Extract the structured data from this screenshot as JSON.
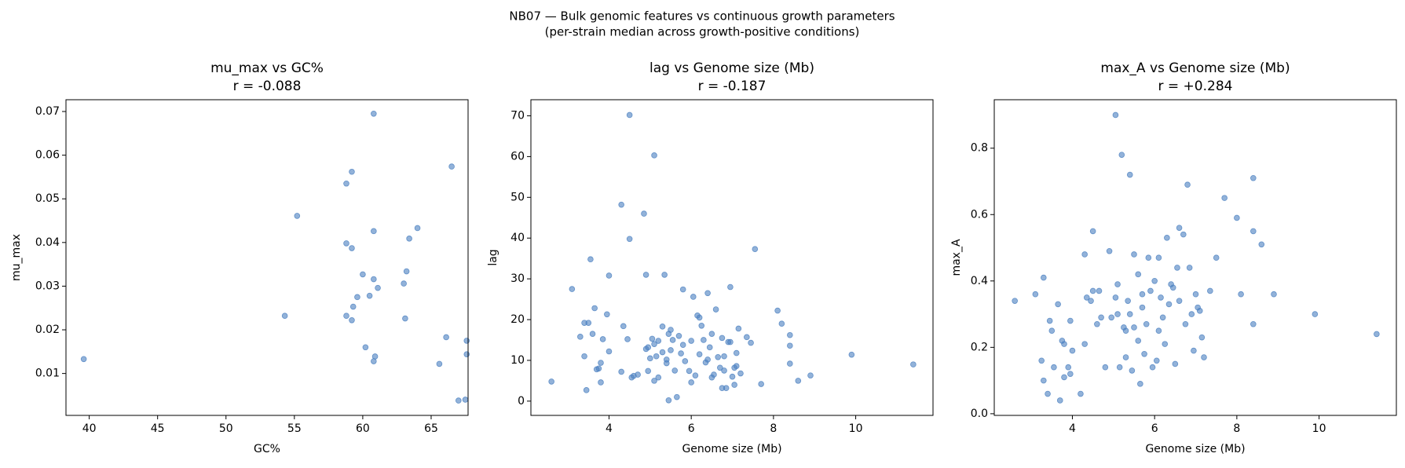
{
  "title": "NB07 — Bulk genomic features vs continuous growth parameters",
  "subtitle": "(per-strain median across growth-positive conditions)",
  "chart_data": [
    {
      "type": "scatter",
      "title": "mu_max vs GC%",
      "subtitle": "r = -0.088",
      "xlabel": "GC%",
      "ylabel": "mu_max",
      "color": "#4a7fc0",
      "x": [
        39.6,
        54.3,
        55.2,
        58.8,
        59.2,
        58.8,
        59.2,
        60.0,
        59.6,
        59.3,
        58.8,
        59.2,
        60.2,
        60.8,
        60.8,
        60.8,
        60.5,
        61.1,
        60.9,
        60.8,
        63.4,
        64.0,
        63.2,
        63.0,
        63.1,
        66.5,
        66.1,
        65.6,
        67.6,
        67.6,
        67.5,
        67.0
      ],
      "values": [
        0.0133,
        0.0232,
        0.0461,
        0.0535,
        0.0562,
        0.0398,
        0.0387,
        0.0327,
        0.0275,
        0.0253,
        0.0232,
        0.0222,
        0.016,
        0.0426,
        0.0695,
        0.0316,
        0.0278,
        0.0296,
        0.0139,
        0.0128,
        0.0409,
        0.0433,
        0.0334,
        0.0306,
        0.0226,
        0.0574,
        0.0183,
        0.0122,
        0.0175,
        0.0144,
        0.004,
        0.0038
      ],
      "xlim": [
        38.3,
        67.7
      ],
      "ylim": [
        0.0004,
        0.0727
      ],
      "xticks": [
        40,
        45,
        50,
        55,
        60,
        65
      ],
      "yticks": [
        0.01,
        0.02,
        0.03,
        0.04,
        0.05,
        0.06,
        0.07
      ]
    },
    {
      "type": "scatter",
      "title": "lag vs Genome size (Mb)",
      "subtitle": "r = -0.187",
      "xlabel": "Genome size (Mb)",
      "ylabel": "lag",
      "color": "#4a7fc0",
      "x": [
        2.6,
        3.1,
        3.3,
        3.4,
        3.4,
        3.5,
        3.45,
        3.55,
        3.6,
        3.65,
        3.7,
        3.75,
        3.8,
        3.8,
        3.85,
        4.0,
        3.95,
        4.0,
        4.3,
        4.3,
        4.35,
        4.45,
        4.5,
        4.5,
        4.6,
        4.55,
        4.7,
        4.85,
        4.9,
        4.9,
        4.95,
        4.95,
        5.0,
        5.1,
        5.05,
        5.1,
        5.1,
        5.15,
        5.2,
        5.2,
        5.3,
        5.3,
        5.35,
        5.4,
        5.4,
        5.45,
        5.45,
        5.5,
        5.5,
        5.55,
        5.6,
        5.65,
        5.7,
        5.75,
        5.8,
        5.8,
        5.85,
        5.95,
        6.0,
        6.0,
        6.05,
        6.1,
        6.15,
        6.2,
        6.2,
        6.25,
        6.3,
        6.35,
        6.4,
        6.4,
        6.45,
        6.5,
        6.5,
        6.55,
        6.6,
        6.65,
        6.7,
        6.75,
        6.75,
        6.8,
        6.8,
        6.85,
        6.9,
        6.95,
        6.95,
        7.0,
        7.05,
        7.05,
        7.1,
        7.1,
        7.15,
        7.2,
        7.35,
        7.45,
        7.55,
        7.7,
        8.1,
        8.2,
        8.4,
        8.4,
        8.4,
        8.6,
        8.9,
        9.9,
        11.4
      ],
      "values": [
        4.8,
        27.5,
        15.8,
        19.2,
        11,
        19.2,
        2.7,
        34.8,
        16.5,
        22.8,
        7.8,
        8,
        9.4,
        4.6,
        15.2,
        30.8,
        21.3,
        12.2,
        7.2,
        48.2,
        18.4,
        15.2,
        39.8,
        70.2,
        6.2,
        5.8,
        6.5,
        46,
        31,
        12.8,
        13.2,
        7.4,
        10.5,
        60.3,
        15.3,
        14,
        5,
        11,
        5.8,
        14.8,
        12,
        18.3,
        31,
        9.3,
        10.2,
        16.5,
        0.2,
        17.5,
        12.5,
        15,
        7.5,
        1,
        16,
        11.7,
        13.8,
        27.4,
        9.8,
        7.4,
        14.8,
        4.6,
        25.6,
        6.3,
        21,
        20.5,
        11.5,
        18.5,
        15,
        9.5,
        26.5,
        10.2,
        13.2,
        16.5,
        5.8,
        6.5,
        22.5,
        10.8,
        8.2,
        3.2,
        15.5,
        7.5,
        11,
        3.2,
        14.5,
        28,
        14.5,
        6,
        8.2,
        4,
        8.6,
        11.8,
        17.8,
        6.8,
        15.7,
        14.3,
        37.3,
        4.2,
        22.2,
        19,
        13.6,
        16.2,
        9.2,
        5,
        6.3,
        11.4,
        9
      ],
      "xlim": [
        2.1,
        11.88
      ],
      "ylim": [
        -3.5,
        73.95
      ],
      "xticks": [
        4,
        6,
        8,
        10
      ],
      "yticks": [
        0,
        10,
        20,
        30,
        40,
        50,
        60,
        70
      ]
    },
    {
      "type": "scatter",
      "title": "max_A vs Genome size (Mb)",
      "subtitle": "r = +0.284",
      "xlabel": "Genome size (Mb)",
      "ylabel": "max_A",
      "color": "#4a7fc0",
      "x": [
        2.6,
        3.1,
        3.3,
        3.25,
        3.3,
        3.4,
        3.45,
        3.5,
        3.55,
        3.65,
        3.7,
        3.75,
        3.8,
        3.8,
        3.9,
        3.95,
        3.95,
        4.0,
        4.2,
        4.3,
        4.3,
        4.35,
        4.45,
        4.5,
        4.5,
        4.6,
        4.65,
        4.7,
        4.8,
        4.9,
        4.95,
        5.05,
        5.05,
        5.1,
        5.1,
        5.15,
        5.2,
        5.25,
        5.3,
        5.3,
        5.35,
        5.4,
        5.4,
        5.45,
        5.5,
        5.5,
        5.6,
        5.6,
        5.65,
        5.7,
        5.7,
        5.75,
        5.8,
        5.85,
        5.9,
        5.95,
        6.0,
        6.05,
        6.1,
        6.1,
        6.15,
        6.2,
        6.25,
        6.3,
        6.35,
        6.4,
        6.45,
        6.5,
        6.55,
        6.6,
        6.6,
        6.7,
        6.75,
        6.8,
        6.85,
        6.9,
        6.95,
        7.0,
        7.05,
        7.1,
        7.15,
        7.2,
        7.35,
        7.5,
        7.7,
        8.0,
        8.1,
        8.4,
        8.4,
        8.4,
        8.6,
        8.9,
        9.9,
        11.4
      ],
      "values": [
        0.34,
        0.36,
        0.41,
        0.16,
        0.1,
        0.06,
        0.28,
        0.25,
        0.14,
        0.33,
        0.04,
        0.22,
        0.21,
        0.11,
        0.14,
        0.28,
        0.12,
        0.19,
        0.06,
        0.48,
        0.21,
        0.35,
        0.34,
        0.55,
        0.37,
        0.27,
        0.37,
        0.29,
        0.14,
        0.49,
        0.29,
        0.9,
        0.35,
        0.3,
        0.39,
        0.14,
        0.78,
        0.26,
        0.25,
        0.17,
        0.34,
        0.72,
        0.3,
        0.13,
        0.26,
        0.48,
        0.42,
        0.22,
        0.09,
        0.32,
        0.36,
        0.18,
        0.27,
        0.47,
        0.37,
        0.14,
        0.4,
        0.16,
        0.47,
        0.25,
        0.35,
        0.29,
        0.21,
        0.53,
        0.33,
        0.39,
        0.38,
        0.15,
        0.44,
        0.56,
        0.34,
        0.54,
        0.27,
        0.69,
        0.44,
        0.3,
        0.19,
        0.36,
        0.32,
        0.31,
        0.23,
        0.17,
        0.37,
        0.47,
        0.65,
        0.59,
        0.36,
        0.71,
        0.55,
        0.27,
        0.51,
        0.36,
        0.3,
        0.24
      ],
      "xlim": [
        2.1,
        11.88
      ],
      "ylim": [
        -0.005,
        0.946
      ],
      "xticks": [
        4,
        6,
        8,
        10
      ],
      "yticks": [
        {
          "value": 0,
          "label": "0.0"
        },
        0.2,
        0.4,
        0.6,
        0.8
      ]
    }
  ]
}
